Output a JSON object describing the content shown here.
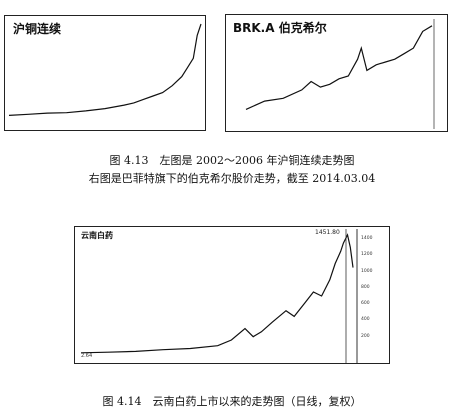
{
  "figure413": {
    "caption_line1": "图 4.13　左图是 2002～2006 年沪铜连续走势图",
    "caption_line2": "右图是巴菲特旗下的伯克希尔股价走势，截至 2014.03.04"
  },
  "figure414": {
    "caption": "图 4.14　云南白药上市以来的走势图（日线，复权）"
  },
  "chart_data": [
    {
      "type": "line",
      "title": "沪铜连续",
      "xlabel": "",
      "ylabel": "",
      "x": [
        0,
        10,
        20,
        30,
        40,
        50,
        60,
        65,
        70,
        75,
        80,
        85,
        90,
        93,
        96,
        98,
        100
      ],
      "values": [
        1.0,
        1.05,
        1.1,
        1.12,
        1.2,
        1.3,
        1.45,
        1.55,
        1.7,
        1.85,
        2.0,
        2.3,
        2.7,
        3.1,
        3.5,
        4.5,
        5.0
      ]
    },
    {
      "type": "line",
      "title": "BRK.A 伯克希尔",
      "xlabel": "",
      "ylabel": "",
      "x": [
        0,
        10,
        20,
        30,
        35,
        40,
        45,
        50,
        55,
        60,
        62,
        65,
        70,
        75,
        80,
        85,
        90,
        95,
        100
      ],
      "values": [
        40,
        55,
        60,
        75,
        90,
        80,
        85,
        95,
        100,
        130,
        150,
        110,
        120,
        125,
        130,
        140,
        150,
        180,
        190
      ]
    },
    {
      "type": "line",
      "title": "云南白药",
      "xlabel": "",
      "ylabel": "",
      "yticks": [
        "1400",
        "1200",
        "1000",
        "800",
        "600",
        "400",
        "200"
      ],
      "ylim": [
        0,
        1450
      ],
      "annotations": {
        "peak": "1451.80",
        "start": "2.64"
      },
      "x": [
        0,
        10,
        20,
        30,
        40,
        50,
        55,
        60,
        63,
        66,
        70,
        75,
        78,
        82,
        85,
        88,
        91,
        93,
        95,
        96,
        97.5,
        98.5,
        99.5
      ],
      "values": [
        2.64,
        10,
        20,
        40,
        55,
        90,
        160,
        300,
        200,
        260,
        380,
        520,
        450,
        620,
        750,
        700,
        900,
        1100,
        1250,
        1350,
        1451.8,
        1300,
        1050
      ]
    }
  ]
}
